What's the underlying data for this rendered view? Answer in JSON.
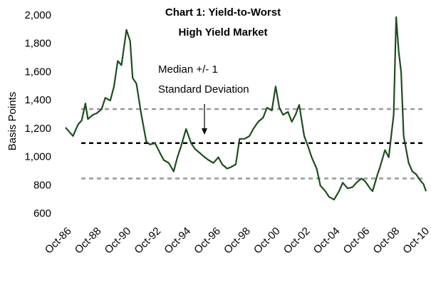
{
  "chart_data": {
    "type": "line",
    "title": [
      "Chart 1: Yield-to-Worst",
      "High Yield Market"
    ],
    "annotation": [
      "Median +/- 1",
      "Standard Deviation"
    ],
    "y_label": "Basis Points",
    "ylim": [
      600,
      2000
    ],
    "yticks": [
      600,
      800,
      {
        "value": 1000,
        "label": "1,000"
      },
      {
        "value": 1200,
        "label": "1,200"
      },
      {
        "value": 1400,
        "label": "1,400"
      },
      {
        "value": 1600,
        "label": "1,600"
      },
      {
        "value": 1800,
        "label": "1,800"
      },
      {
        "value": 2000,
        "label": "2,000"
      }
    ],
    "xlim": [
      "1986-10",
      "2010-12"
    ],
    "xticks": [
      {
        "value": "1986-10",
        "label": "Oct-86"
      },
      {
        "value": "1988-10",
        "label": "Oct-88"
      },
      {
        "value": "1990-10",
        "label": "Oct-90"
      },
      {
        "value": "1992-10",
        "label": "Oct-92"
      },
      {
        "value": "1994-10",
        "label": "Oct-94"
      },
      {
        "value": "1996-10",
        "label": "Oct-96"
      },
      {
        "value": "1998-10",
        "label": "Oct-98"
      },
      {
        "value": "2000-10",
        "label": "Oct-00"
      },
      {
        "value": "2002-10",
        "label": "Oct-02"
      },
      {
        "value": "2004-10",
        "label": "Oct-04"
      },
      {
        "value": "2006-10",
        "label": "Oct-06"
      },
      {
        "value": "2008-10",
        "label": "Oct-08"
      },
      {
        "value": "2010-10",
        "label": "Oct-10"
      }
    ],
    "reference_lines": [
      {
        "value": 1340,
        "color": "#999999"
      },
      {
        "value": 1100,
        "color": "#000000"
      },
      {
        "value": 850,
        "color": "#999999"
      }
    ],
    "color": "#1e4d1e",
    "x": [
      "1986-10",
      "1987-01",
      "1987-04",
      "1987-08",
      "1987-11",
      "1988-02",
      "1988-04",
      "1988-08",
      "1988-11",
      "1989-03",
      "1989-06",
      "1989-10",
      "1990-01",
      "1990-04",
      "1990-07",
      "1990-11",
      "1991-02",
      "1991-04",
      "1991-07",
      "1991-11",
      "1992-03",
      "1992-06",
      "1992-10",
      "1993-02",
      "1993-05",
      "1993-09",
      "1994-01",
      "1994-04",
      "1994-07",
      "1994-11",
      "1995-03",
      "1995-06",
      "1995-10",
      "1996-02",
      "1996-05",
      "1996-09",
      "1997-01",
      "1997-04",
      "1997-08",
      "1997-11",
      "1998-03",
      "1998-06",
      "1998-10",
      "1999-02",
      "1999-05",
      "1999-09",
      "2000-01",
      "2000-04",
      "2000-08",
      "2000-11",
      "2001-02",
      "2001-05",
      "2001-09",
      "2001-12",
      "2002-03",
      "2002-06",
      "2002-10",
      "2003-01",
      "2003-04",
      "2003-08",
      "2003-11",
      "2004-03",
      "2004-06",
      "2004-10",
      "2005-02",
      "2005-05",
      "2005-09",
      "2006-01",
      "2006-04",
      "2006-08",
      "2006-11",
      "2007-03",
      "2007-05",
      "2007-09",
      "2007-11",
      "2008-03",
      "2008-06",
      "2008-10",
      "2008-12",
      "2009-02",
      "2009-04",
      "2009-06",
      "2009-10",
      "2010-01",
      "2010-04",
      "2010-07",
      "2010-10",
      "2010-12"
    ],
    "values": [
      1210,
      1180,
      1150,
      1230,
      1260,
      1380,
      1270,
      1300,
      1310,
      1340,
      1420,
      1400,
      1500,
      1680,
      1650,
      1900,
      1820,
      1560,
      1520,
      1300,
      1110,
      1090,
      1100,
      1030,
      980,
      960,
      900,
      1000,
      1080,
      1200,
      1100,
      1060,
      1030,
      1000,
      980,
      960,
      1000,
      950,
      920,
      930,
      950,
      1130,
      1130,
      1150,
      1200,
      1250,
      1280,
      1350,
      1330,
      1500,
      1350,
      1300,
      1320,
      1250,
      1300,
      1370,
      1150,
      1080,
      1000,
      920,
      800,
      760,
      720,
      700,
      760,
      820,
      780,
      790,
      820,
      850,
      830,
      780,
      760,
      880,
      930,
      1050,
      1000,
      1300,
      1990,
      1750,
      1600,
      1150,
      960,
      900,
      880,
      840,
      810,
      760
    ]
  }
}
